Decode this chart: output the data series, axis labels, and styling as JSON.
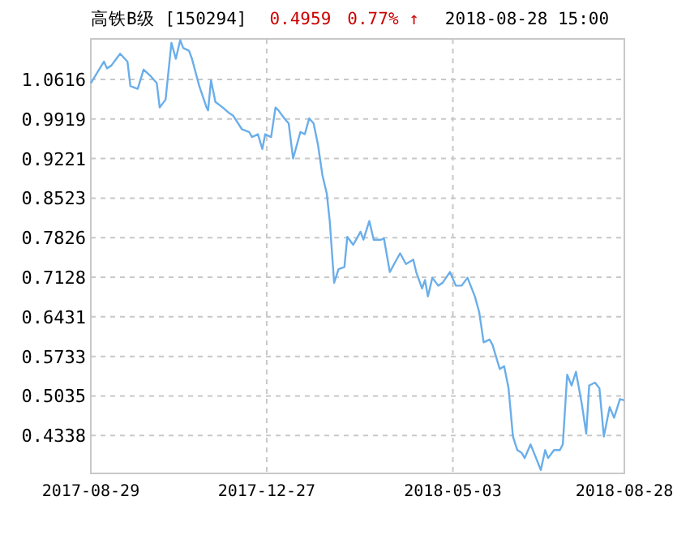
{
  "chart_data": {
    "type": "line",
    "title": "高铁B级 [150294]",
    "subtitle": "2018-08-28 15:00",
    "annotations": [
      "0.4959",
      "0.77% ↑"
    ],
    "x": [
      "2017-08-29",
      "2017-09-07",
      "2017-09-09",
      "2017-09-12",
      "2017-09-18",
      "2017-09-23",
      "2017-09-25",
      "2017-09-30",
      "2017-10-04",
      "2017-10-09",
      "2017-10-13",
      "2017-10-15",
      "2017-10-19",
      "2017-10-23",
      "2017-10-26",
      "2017-10-29",
      "2017-10-31",
      "2017-11-04",
      "2017-11-06",
      "2017-11-11",
      "2017-11-16",
      "2017-11-17",
      "2017-11-19",
      "2017-11-22",
      "2017-11-27",
      "2017-12-01",
      "2017-12-04",
      "2017-12-10",
      "2017-12-15",
      "2017-12-17",
      "2017-12-21",
      "2017-12-24",
      "2017-12-26",
      "2017-12-30",
      "2018-01-02",
      "2018-01-04",
      "2018-01-08",
      "2018-01-11",
      "2018-01-14",
      "2018-01-19",
      "2018-01-22",
      "2018-01-25",
      "2018-01-28",
      "2018-01-31",
      "2018-02-03",
      "2018-02-06",
      "2018-02-08",
      "2018-02-11",
      "2018-02-14",
      "2018-02-18",
      "2018-02-20",
      "2018-02-24",
      "2018-02-26",
      "2018-03-01",
      "2018-03-03",
      "2018-03-07",
      "2018-03-10",
      "2018-03-15",
      "2018-03-17",
      "2018-03-21",
      "2018-03-25",
      "2018-03-28",
      "2018-04-01",
      "2018-04-06",
      "2018-04-08",
      "2018-04-12",
      "2018-04-14",
      "2018-04-16",
      "2018-04-19",
      "2018-04-23",
      "2018-04-26",
      "2018-05-01",
      "2018-05-05",
      "2018-05-09",
      "2018-05-13",
      "2018-05-18",
      "2018-05-21",
      "2018-05-24",
      "2018-05-28",
      "2018-05-30",
      "2018-06-04",
      "2018-06-07",
      "2018-06-10",
      "2018-06-13",
      "2018-06-16",
      "2018-06-19",
      "2018-06-21",
      "2018-06-25",
      "2018-06-28",
      "2018-07-02",
      "2018-07-05",
      "2018-07-07",
      "2018-07-11",
      "2018-07-15",
      "2018-07-17",
      "2018-07-20",
      "2018-07-23",
      "2018-07-26",
      "2018-07-30",
      "2018-08-02",
      "2018-08-04",
      "2018-08-08",
      "2018-08-11",
      "2018-08-14",
      "2018-08-18",
      "2018-08-21",
      "2018-08-25",
      "2018-08-28"
    ],
    "series": [
      {
        "color": "#6aaeea",
        "values": [
          1.055,
          1.093,
          1.081,
          1.086,
          1.107,
          1.093,
          1.05,
          1.045,
          1.079,
          1.067,
          1.055,
          1.012,
          1.026,
          1.126,
          1.098,
          1.131,
          1.117,
          1.112,
          1.098,
          1.05,
          1.012,
          1.007,
          1.06,
          1.022,
          1.012,
          1.003,
          0.998,
          0.974,
          0.969,
          0.96,
          0.965,
          0.939,
          0.965,
          0.96,
          1.012,
          1.007,
          0.993,
          0.984,
          0.922,
          0.969,
          0.965,
          0.993,
          0.984,
          0.946,
          0.893,
          0.86,
          0.812,
          0.703,
          0.727,
          0.731,
          0.784,
          0.77,
          0.779,
          0.793,
          0.779,
          0.812,
          0.779,
          0.779,
          0.781,
          0.722,
          0.741,
          0.755,
          0.736,
          0.744,
          0.722,
          0.693,
          0.708,
          0.679,
          0.712,
          0.698,
          0.703,
          0.722,
          0.698,
          0.698,
          0.712,
          0.679,
          0.651,
          0.598,
          0.603,
          0.594,
          0.551,
          0.556,
          0.517,
          0.432,
          0.408,
          0.403,
          0.394,
          0.418,
          0.399,
          0.373,
          0.408,
          0.394,
          0.408,
          0.408,
          0.418,
          0.541,
          0.522,
          0.546,
          0.489,
          0.437,
          0.522,
          0.527,
          0.517,
          0.432,
          0.484,
          0.465,
          0.498,
          0.4959
        ]
      }
    ],
    "xlim": [
      "2017-08-29",
      "2018-08-28"
    ],
    "xticks": [
      "2017-08-29",
      "2017-12-27",
      "2018-05-03",
      "2018-08-28"
    ],
    "ylim": [
      0.367,
      1.133
    ],
    "yticks": [
      {
        "value": 0.4338,
        "label": "0.4338"
      },
      {
        "value": 0.5035,
        "label": "0.5035"
      },
      {
        "value": 0.5733,
        "label": "0.5733"
      },
      {
        "value": 0.6431,
        "label": "0.6431"
      },
      {
        "value": 0.7128,
        "label": "0.7128"
      },
      {
        "value": 0.7826,
        "label": "0.7826"
      },
      {
        "value": 0.8523,
        "label": "0.8523"
      },
      {
        "value": 0.9221,
        "label": "0.9221"
      },
      {
        "value": 0.9919,
        "label": "0.9919"
      },
      {
        "value": 1.0616,
        "label": "1.0616"
      }
    ],
    "grid": true
  }
}
